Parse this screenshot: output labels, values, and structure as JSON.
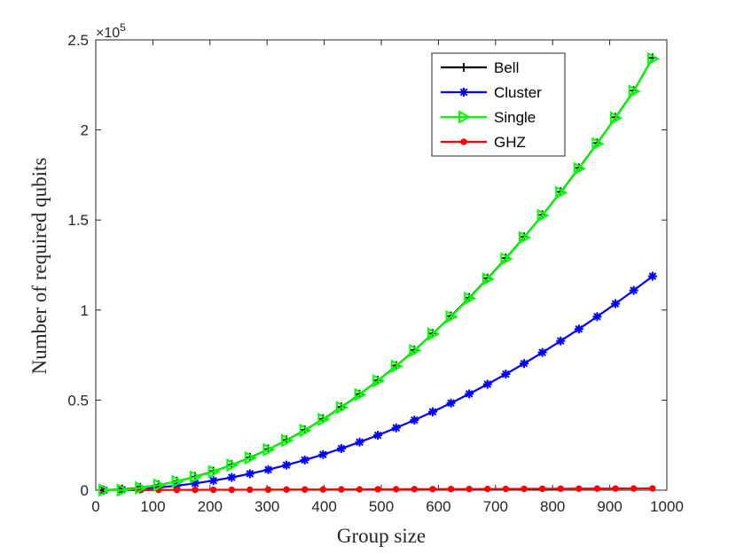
{
  "chart_data": {
    "type": "line",
    "xlabel": "Group size",
    "ylabel": "Number of required qubits",
    "xlim": [
      0,
      1000
    ],
    "ylim": [
      0,
      250000
    ],
    "xticks": [
      0,
      100,
      200,
      300,
      400,
      500,
      600,
      700,
      800,
      900,
      1000
    ],
    "xtick_labels": [
      "0",
      "100",
      "200",
      "300",
      "400",
      "500",
      "600",
      "700",
      "800",
      "900",
      "1000"
    ],
    "yticks": [
      0,
      50000,
      100000,
      150000,
      200000,
      250000
    ],
    "ytick_labels": [
      "0",
      "0.5",
      "1",
      "1.5",
      "2",
      "2.5"
    ],
    "y_exponent_base": "×10",
    "y_exponent_power": "5",
    "legend_position": "top-right",
    "x": [
      14,
      46,
      78,
      110,
      142,
      174,
      206,
      238,
      270,
      302,
      334,
      366,
      398,
      430,
      462,
      494,
      526,
      558,
      590,
      622,
      654,
      686,
      718,
      750,
      782,
      814,
      846,
      878,
      910,
      942,
      975
    ],
    "series": [
      {
        "name": "Bell",
        "color": "#000000",
        "marker": "plus",
        "values": [
          49,
          529,
          1521,
          3025,
          5041,
          7569,
          10609,
          14161,
          18225,
          22801,
          27889,
          33489,
          39601,
          46225,
          53361,
          61009,
          69169,
          77841,
          87025,
          96721,
          106929,
          117649,
          128881,
          140625,
          152881,
          165649,
          178929,
          192721,
          207025,
          221841,
          240000
        ]
      },
      {
        "name": "Cluster",
        "color": "#0000ff",
        "marker": "asterisk",
        "values": [
          25,
          265,
          761,
          1513,
          2521,
          3785,
          5305,
          7081,
          9113,
          11401,
          13945,
          16745,
          19801,
          23113,
          26681,
          30505,
          34585,
          38921,
          43513,
          48361,
          53465,
          58825,
          64441,
          70313,
          76441,
          82825,
          89465,
          96361,
          103513,
          110921,
          118800
        ]
      },
      {
        "name": "Single",
        "color": "#00ff00",
        "marker": "triangle-right",
        "values": [
          0,
          0,
          1300,
          2800,
          4800,
          7300,
          10300,
          13900,
          17900,
          22500,
          27600,
          33200,
          39300,
          45900,
          53000,
          60700,
          68800,
          77500,
          86700,
          96300,
          106500,
          117200,
          128400,
          140200,
          152500,
          165200,
          178500,
          192300,
          206600,
          221400,
          239500
        ]
      },
      {
        "name": "GHZ",
        "color": "#ff0000",
        "marker": "dot",
        "values": [
          14,
          46,
          78,
          110,
          142,
          174,
          206,
          238,
          270,
          302,
          334,
          366,
          398,
          430,
          462,
          494,
          526,
          558,
          590,
          622,
          654,
          686,
          718,
          750,
          782,
          814,
          846,
          878,
          910,
          942,
          975
        ]
      }
    ]
  }
}
